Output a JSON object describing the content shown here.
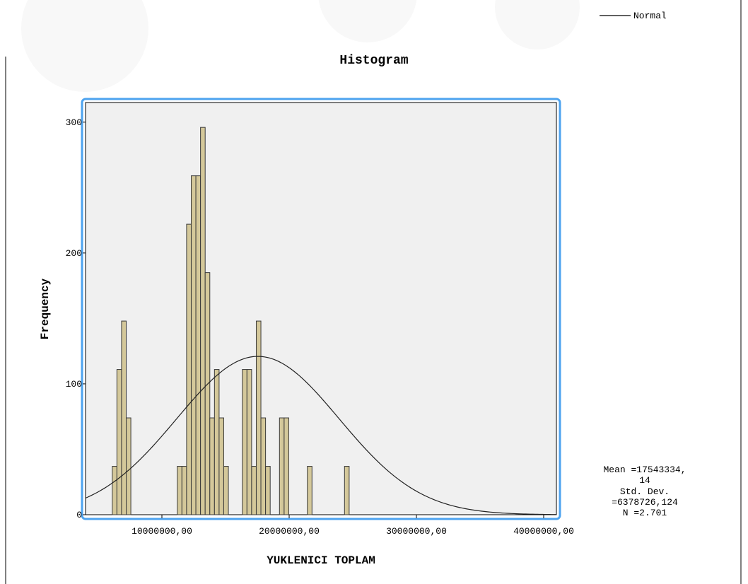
{
  "legend": {
    "label": "Normal"
  },
  "chart_data": {
    "type": "bar",
    "title": "Histogram",
    "xlabel": "YUKLENICI TOPLAM",
    "ylabel": "Frequency",
    "xlim": [
      4000000,
      41000000
    ],
    "ylim": [
      0,
      315
    ],
    "x_ticks": [
      {
        "value": 10000000,
        "label": "10000000,00"
      },
      {
        "value": 20000000,
        "label": "20000000,00"
      },
      {
        "value": 30000000,
        "label": "30000000,00"
      },
      {
        "value": 40000000,
        "label": "40000000,00"
      }
    ],
    "y_ticks": [
      {
        "value": 0,
        "label": "0"
      },
      {
        "value": 100,
        "label": "100"
      },
      {
        "value": 200,
        "label": "200"
      },
      {
        "value": 300,
        "label": "300"
      }
    ],
    "bin_width": 365000,
    "bins": [
      {
        "x": 6100000,
        "count": 37
      },
      {
        "x": 6465000,
        "count": 111
      },
      {
        "x": 6830000,
        "count": 148
      },
      {
        "x": 7195000,
        "count": 74
      },
      {
        "x": 11210000,
        "count": 37
      },
      {
        "x": 11575000,
        "count": 37
      },
      {
        "x": 11940000,
        "count": 222
      },
      {
        "x": 12305000,
        "count": 259
      },
      {
        "x": 12670000,
        "count": 259
      },
      {
        "x": 13035000,
        "count": 296
      },
      {
        "x": 13400000,
        "count": 185
      },
      {
        "x": 13765000,
        "count": 74
      },
      {
        "x": 14130000,
        "count": 111
      },
      {
        "x": 14495000,
        "count": 74
      },
      {
        "x": 14860000,
        "count": 37
      },
      {
        "x": 16320000,
        "count": 111
      },
      {
        "x": 16685000,
        "count": 111
      },
      {
        "x": 17050000,
        "count": 37
      },
      {
        "x": 17415000,
        "count": 148
      },
      {
        "x": 17780000,
        "count": 74
      },
      {
        "x": 18145000,
        "count": 37
      },
      {
        "x": 19240000,
        "count": 74
      },
      {
        "x": 19605000,
        "count": 74
      },
      {
        "x": 21430000,
        "count": 37
      },
      {
        "x": 24350000,
        "count": 37
      }
    ],
    "normal_curve": {
      "mean": 17543334.14,
      "sd": 6378726.124,
      "peak": 121
    },
    "stats": {
      "line1": "Mean =17543334,",
      "line2": "14",
      "line3": "Std. Dev.",
      "line4": "=6378726,124",
      "line5": "N =2.701"
    },
    "grid": false,
    "legend_position": "top-right",
    "colors": {
      "bar_fill": "#d4c89a",
      "bar_stroke": "#3a3a3a",
      "plot_bg": "#f0f0f0",
      "selection_border": "#4da3ef",
      "curve": "#222222"
    }
  }
}
